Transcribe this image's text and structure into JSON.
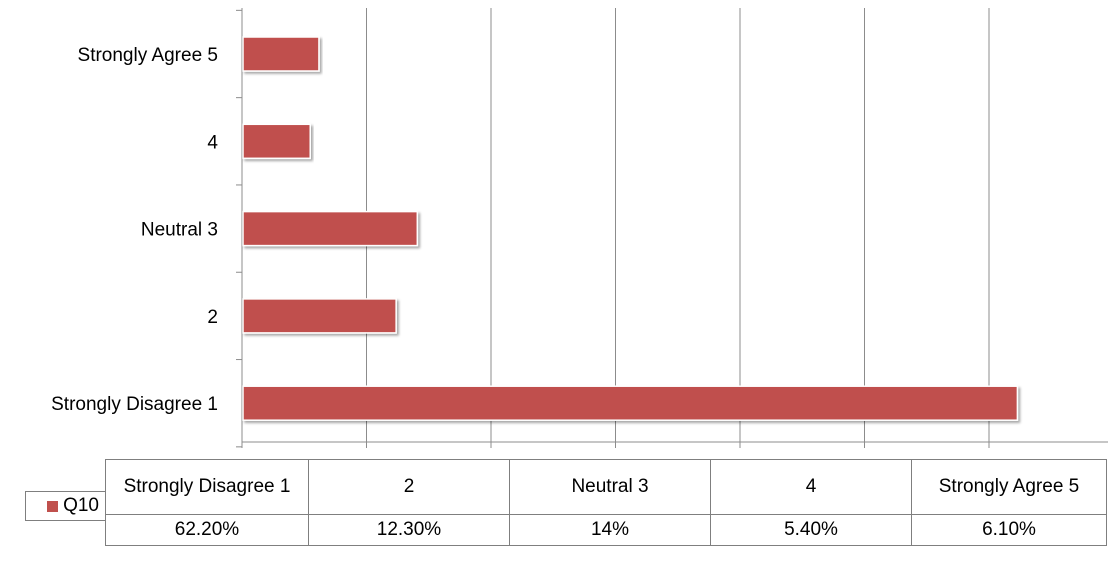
{
  "chart_data": {
    "type": "bar",
    "orientation": "horizontal",
    "categories": [
      "Strongly Disagree 1",
      "2",
      "Neutral 3",
      "4",
      "Strongly Agree 5"
    ],
    "series": [
      {
        "name": "Q10",
        "values": [
          62.2,
          12.3,
          14,
          5.4,
          6.1
        ],
        "color": "#c0504d"
      }
    ],
    "xlim": [
      0,
      70
    ],
    "x_gridline_step": 10,
    "grid": true,
    "legend": "data table (bottom)",
    "table": {
      "headers": [
        "Strongly Disagree 1",
        "2",
        "Neutral 3",
        "4",
        "Strongly Agree 5"
      ],
      "row_label": "Q10",
      "cells": [
        "62.20%",
        "12.30%",
        "14%",
        "5.40%",
        "6.10%"
      ]
    }
  }
}
